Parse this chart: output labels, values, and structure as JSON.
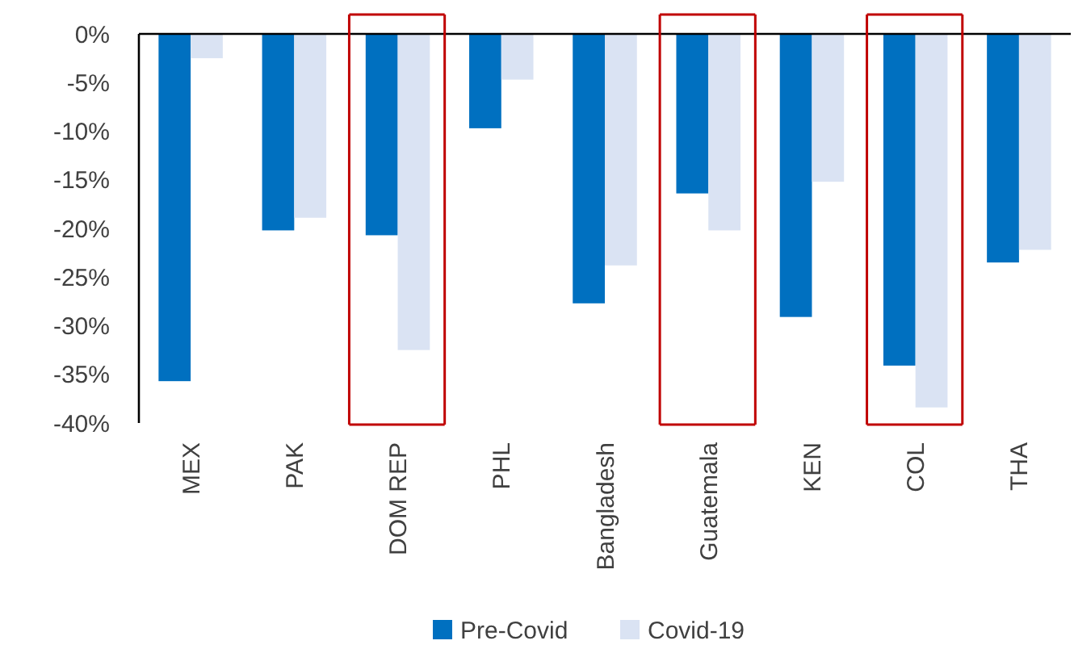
{
  "chart_data": {
    "type": "bar",
    "categories": [
      "MEX",
      "PAK",
      "DOM REP",
      "PHL",
      "Bangladesh",
      "Guatemala",
      "KEN",
      "COL",
      "THA"
    ],
    "series": [
      {
        "name": "Pre-Covid",
        "color": "#0070c0",
        "values": [
          -35.7,
          -20.2,
          -20.7,
          -9.7,
          -27.7,
          -16.4,
          -29.1,
          -34.1,
          -23.5
        ]
      },
      {
        "name": "Covid-19",
        "color": "#dae3f3",
        "values": [
          -2.5,
          -18.9,
          -32.5,
          -4.7,
          -23.8,
          -20.2,
          -15.2,
          -38.4,
          -22.2
        ]
      }
    ],
    "ylim": [
      -40,
      0
    ],
    "yticks": [
      {
        "value": 0,
        "label": "0%"
      },
      {
        "value": -5,
        "label": "-5%"
      },
      {
        "value": -10,
        "label": "-10%"
      },
      {
        "value": -15,
        "label": "-15%"
      },
      {
        "value": -20,
        "label": "-20%"
      },
      {
        "value": -25,
        "label": "-25%"
      },
      {
        "value": -30,
        "label": "-30%"
      },
      {
        "value": -35,
        "label": "-35%"
      },
      {
        "value": -40,
        "label": "-40%"
      }
    ],
    "grid": false,
    "legend": "bottom"
  }
}
